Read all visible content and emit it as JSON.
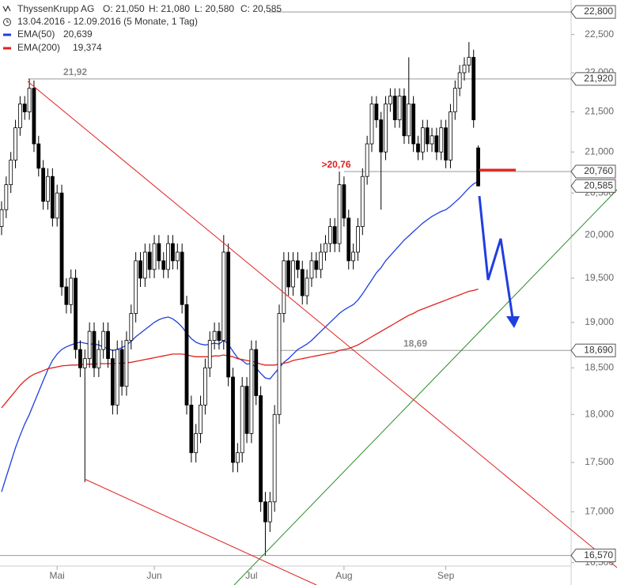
{
  "chart_data": {
    "type": "candlestick",
    "title": "ThyssenKrupp AG",
    "quote": [
      "O: 21,050",
      "H: 21,080",
      "L: 20,580",
      "C: 20,585"
    ],
    "period": "13.04.2016 - 12.09.2016 (5 Monate, 1 Tag)",
    "ylog": true,
    "ylim": [
      16300,
      22960
    ],
    "yticks": [
      {
        "value": 16500,
        "label": "16,500"
      },
      {
        "value": 17000,
        "label": "17,000"
      },
      {
        "value": 17500,
        "label": "17,500"
      },
      {
        "value": 18000,
        "label": "18,000"
      },
      {
        "value": 18500,
        "label": "18,500"
      },
      {
        "value": 19000,
        "label": "19,000"
      },
      {
        "value": 19500,
        "label": "19,500"
      },
      {
        "value": 20000,
        "label": "20,000"
      },
      {
        "value": 20500,
        "label": "20,500"
      },
      {
        "value": 21000,
        "label": "21,000"
      },
      {
        "value": 21500,
        "label": "21,500"
      },
      {
        "value": 22000,
        "label": "22,000"
      },
      {
        "value": 22500,
        "label": "22,500"
      }
    ],
    "categories": [
      null,
      null,
      null,
      null,
      null,
      null,
      null,
      null,
      null,
      null,
      null,
      null,
      "Mai",
      null,
      null,
      null,
      null,
      null,
      null,
      null,
      null,
      null,
      null,
      null,
      null,
      null,
      null,
      null,
      null,
      null,
      null,
      null,
      null,
      "Jun",
      null,
      null,
      null,
      null,
      null,
      null,
      null,
      null,
      null,
      null,
      null,
      null,
      null,
      null,
      null,
      null,
      null,
      null,
      null,
      null,
      "Jul",
      null,
      null,
      null,
      null,
      null,
      null,
      null,
      null,
      null,
      null,
      null,
      null,
      null,
      null,
      null,
      null,
      null,
      null,
      null,
      "Aug",
      null,
      null,
      null,
      null,
      null,
      null,
      null,
      null,
      null,
      null,
      null,
      null,
      null,
      null,
      null,
      null,
      null,
      null,
      null,
      null,
      null,
      "Sep",
      null,
      null,
      null,
      null,
      null,
      null,
      null
    ],
    "up_color": "#ffffff",
    "down_color": "#000000",
    "open": [
      20100,
      20300,
      20600,
      20900,
      21300,
      21600,
      21500,
      21800,
      21100,
      20800,
      20400,
      20700,
      20200,
      20500,
      19400,
      19200,
      19500,
      18700,
      18500,
      18600,
      18900,
      18500,
      18700,
      18900,
      18600,
      18100,
      18700,
      18300,
      18800,
      19100,
      19700,
      19500,
      19800,
      19600,
      19900,
      19700,
      19600,
      19900,
      19700,
      19800,
      19200,
      18100,
      17600,
      17800,
      18100,
      18500,
      18800,
      18900,
      18800,
      19800,
      18400,
      17500,
      17600,
      18300,
      17800,
      18700,
      18200,
      17100,
      16900,
      17100,
      18000,
      19100,
      19700,
      19400,
      19700,
      19600,
      19300,
      19500,
      19700,
      19600,
      19800,
      19900,
      20100,
      19900,
      20600,
      20200,
      19700,
      19800,
      20100,
      20700,
      21100,
      21600,
      21400,
      21000,
      21600,
      21700,
      21400,
      21700,
      21200,
      21600,
      21100,
      21000,
      21300,
      21100,
      21200,
      21000,
      21300,
      20900,
      21500,
      21800,
      22000,
      22100,
      22200,
      21050
    ],
    "high": [
      20400,
      20700,
      21000,
      21400,
      21700,
      21700,
      21920,
      21900,
      21200,
      20900,
      20800,
      20800,
      20600,
      20600,
      19500,
      19600,
      19600,
      18800,
      18700,
      19000,
      19000,
      18800,
      19000,
      19000,
      18700,
      18800,
      18800,
      18900,
      19200,
      19800,
      19800,
      19900,
      19900,
      20000,
      20000,
      19800,
      20000,
      20000,
      19900,
      19900,
      19300,
      18200,
      17900,
      18200,
      18600,
      18900,
      19000,
      19000,
      20000,
      19900,
      18500,
      17700,
      18400,
      18400,
      18800,
      18800,
      18300,
      17200,
      17200,
      18100,
      19200,
      19800,
      19800,
      19800,
      19800,
      19700,
      19600,
      19800,
      19800,
      19900,
      20000,
      20200,
      20200,
      20760,
      20700,
      20300,
      19900,
      20200,
      20800,
      21200,
      21700,
      21700,
      21500,
      21700,
      21800,
      21800,
      21800,
      21800,
      22200,
      21700,
      21200,
      21400,
      21400,
      21300,
      21300,
      21400,
      21400,
      21600,
      21900,
      22100,
      22200,
      22400,
      22300,
      21080
    ],
    "low": [
      20000,
      20200,
      20500,
      20800,
      21200,
      21400,
      21400,
      21000,
      20700,
      20300,
      20300,
      20100,
      20100,
      19300,
      19100,
      19100,
      18600,
      18400,
      17300,
      18500,
      18400,
      18400,
      18600,
      18500,
      18000,
      18000,
      18200,
      18200,
      18700,
      19000,
      19400,
      19400,
      19500,
      19500,
      19600,
      19500,
      19500,
      19600,
      19600,
      19100,
      18000,
      17500,
      17500,
      17700,
      18000,
      18400,
      18700,
      18700,
      18700,
      18300,
      17400,
      17400,
      17500,
      17700,
      17700,
      18100,
      17000,
      16570,
      16800,
      17000,
      17900,
      19000,
      19300,
      19300,
      19500,
      19200,
      19200,
      19400,
      19500,
      19500,
      19700,
      19800,
      19800,
      19800,
      20100,
      19600,
      19600,
      19700,
      20000,
      20600,
      21000,
      21300,
      20300,
      20900,
      21500,
      21300,
      21300,
      21100,
      21100,
      21000,
      20900,
      20900,
      21000,
      21000,
      20900,
      20900,
      20800,
      20800,
      21400,
      21700,
      21900,
      22000,
      21300,
      20580
    ],
    "close": [
      20300,
      20600,
      20900,
      21300,
      21600,
      21500,
      21800,
      21100,
      20800,
      20400,
      20700,
      20200,
      20500,
      19400,
      19200,
      19500,
      18700,
      18500,
      18600,
      18900,
      18500,
      18700,
      18900,
      18600,
      18100,
      18700,
      18300,
      18800,
      19100,
      19700,
      19500,
      19800,
      19600,
      19900,
      19700,
      19600,
      19900,
      19700,
      19800,
      19200,
      18100,
      17600,
      17800,
      18100,
      18500,
      18800,
      18900,
      18800,
      19800,
      18400,
      17500,
      17600,
      18300,
      17800,
      18700,
      18200,
      17100,
      16900,
      17100,
      18000,
      19100,
      19700,
      19400,
      19700,
      19600,
      19300,
      19500,
      19700,
      19600,
      19800,
      19900,
      20100,
      19900,
      20600,
      20200,
      19700,
      19800,
      20100,
      20700,
      21100,
      21600,
      21400,
      21000,
      21600,
      21700,
      21400,
      21700,
      21200,
      21600,
      21100,
      21000,
      21300,
      21100,
      21200,
      21000,
      21300,
      20900,
      21500,
      21800,
      22000,
      22100,
      22200,
      21400,
      20585
    ],
    "series": [
      {
        "name": "EMA(50)",
        "legend_value": "20,639",
        "color": "#1f3fe0",
        "values": [
          17200,
          17350,
          17500,
          17650,
          17780,
          17900,
          18000,
          18120,
          18240,
          18360,
          18480,
          18580,
          18650,
          18700,
          18730,
          18750,
          18770,
          18780,
          18770,
          18760,
          18760,
          18750,
          18730,
          18710,
          18690,
          18700,
          18720,
          18750,
          18790,
          18840,
          18880,
          18920,
          18960,
          19000,
          19030,
          19050,
          19060,
          19040,
          19000,
          18950,
          18880,
          18820,
          18780,
          18760,
          18750,
          18760,
          18770,
          18760,
          18800,
          18760,
          18680,
          18610,
          18580,
          18540,
          18550,
          18500,
          18440,
          18390,
          18380,
          18440,
          18500,
          18560,
          18600,
          18650,
          18700,
          18730,
          18760,
          18800,
          18850,
          18900,
          18950,
          19000,
          19050,
          19100,
          19140,
          19170,
          19200,
          19250,
          19320,
          19400,
          19480,
          19560,
          19620,
          19700,
          19760,
          19820,
          19880,
          19940,
          19990,
          20040,
          20090,
          20140,
          20180,
          20220,
          20250,
          20280,
          20300,
          20340,
          20390,
          20440,
          20500,
          20560,
          20610,
          20639
        ]
      },
      {
        "name": "EMA(200)",
        "legend_value": "19,374",
        "color": "#e0201c",
        "values": [
          18070,
          18130,
          18190,
          18250,
          18310,
          18360,
          18400,
          18430,
          18450,
          18470,
          18490,
          18500,
          18510,
          18520,
          18525,
          18530,
          18530,
          18535,
          18540,
          18540,
          18540,
          18545,
          18545,
          18545,
          18545,
          18550,
          18550,
          18555,
          18560,
          18570,
          18580,
          18590,
          18600,
          18610,
          18620,
          18630,
          18640,
          18650,
          18650,
          18650,
          18640,
          18630,
          18620,
          18620,
          18620,
          18620,
          18630,
          18630,
          18640,
          18630,
          18620,
          18600,
          18590,
          18580,
          18570,
          18560,
          18540,
          18530,
          18530,
          18530,
          18540,
          18550,
          18560,
          18580,
          18590,
          18600,
          18610,
          18620,
          18630,
          18640,
          18650,
          18660,
          18670,
          18690,
          18700,
          18710,
          18730,
          18750,
          18780,
          18810,
          18840,
          18870,
          18900,
          18930,
          18960,
          18990,
          19020,
          19050,
          19080,
          19100,
          19130,
          19150,
          19170,
          19190,
          19210,
          19230,
          19250,
          19270,
          19290,
          19310,
          19330,
          19350,
          19360,
          19374
        ]
      }
    ],
    "levels": [
      {
        "value": 21920,
        "label": "21,92"
      },
      {
        "value": 20760,
        "label": ">20,76"
      },
      {
        "value": 18690,
        "label": "18,69"
      }
    ],
    "price_markers": [
      {
        "value": 22800,
        "label": "22,800"
      },
      {
        "value": 21920,
        "label": "21,920"
      },
      {
        "value": 20760,
        "label": "20,760"
      },
      {
        "value": 20585,
        "label": "20,585"
      },
      {
        "value": 18690,
        "label": "18,690"
      },
      {
        "value": 16570,
        "label": "16,570"
      }
    ]
  }
}
